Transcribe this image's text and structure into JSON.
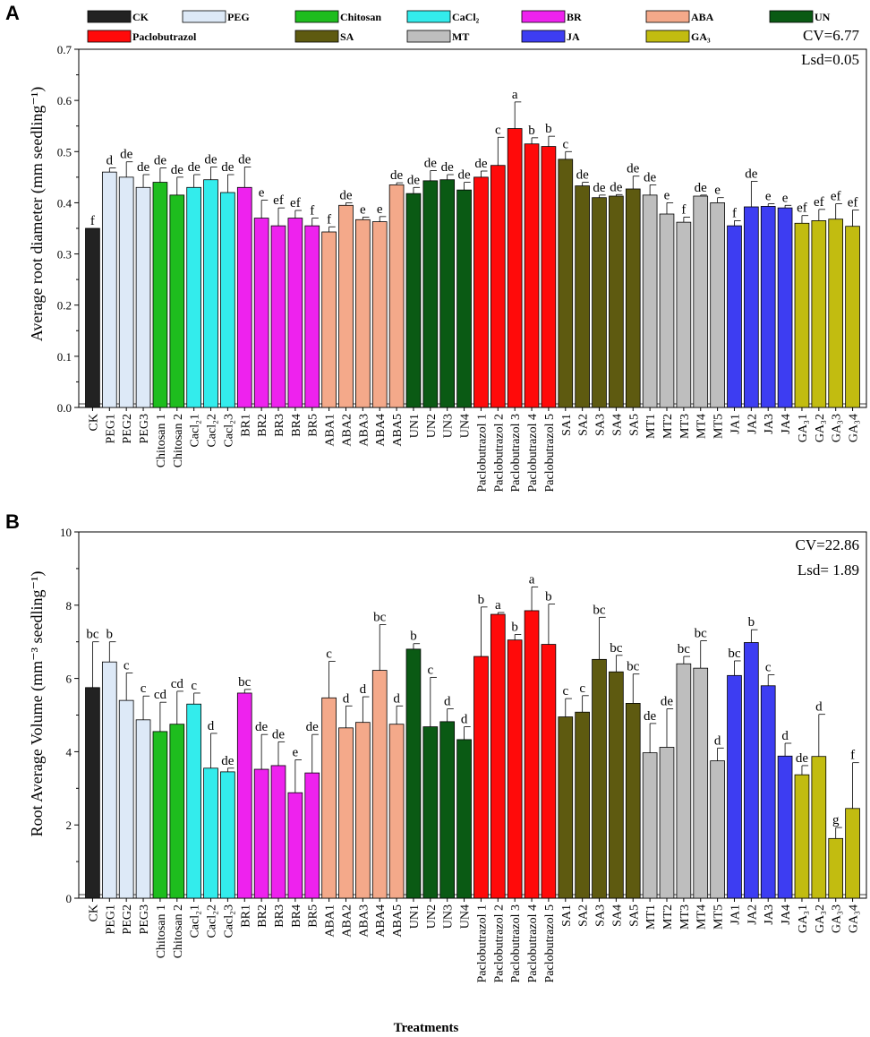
{
  "figure": {
    "xlabel": "Treatments"
  },
  "legend": [
    {
      "label": "CK",
      "color": "#222222"
    },
    {
      "label": "PEG",
      "color": "#dde9f7"
    },
    {
      "label": "Chitosan",
      "color": "#1ebd1e"
    },
    {
      "label": "CaCl₂",
      "color": "#33ecec"
    },
    {
      "label": "BR",
      "color": "#ee22ee"
    },
    {
      "label": "ABA",
      "color": "#f4a98a"
    },
    {
      "label": "UN",
      "color": "#0a5a14"
    },
    {
      "label": "Paclobutrazol",
      "color": "#ff0a0a"
    },
    {
      "label": "SA",
      "color": "#5e5a10"
    },
    {
      "label": "MT",
      "color": "#bebebe"
    },
    {
      "label": "JA",
      "color": "#3d3df2"
    },
    {
      "label": "GA₃",
      "color": "#c2bc10"
    }
  ],
  "chart_data": [
    {
      "panel": "A",
      "type": "bar",
      "title": "",
      "xlabel": "",
      "ylabel": "Average root diameter (mm seedling⁻¹)",
      "ylim": [
        0,
        0.7
      ],
      "yticks": [
        "0.0",
        "0.1",
        "0.2",
        "0.3",
        "0.4",
        "0.5",
        "0.6",
        "0.7"
      ],
      "stats": [
        "CV=6.77",
        "Lsd=0.05"
      ],
      "categories": [
        "CK",
        "PEG1",
        "PEG2",
        "PEG3",
        "Chitosan 1",
        "Chitosan 2",
        "Cacl₂1",
        "Cacl₂2",
        "Cacl₂3",
        "BR1",
        "BR2",
        "BR3",
        "BR4",
        "BR5",
        "ABA1",
        "ABA2",
        "ABA3",
        "ABA4",
        "ABA5",
        "UN1",
        "UN2",
        "UN3",
        "UN4",
        "Paclobutrazol 1",
        "Paclobutrazol 2",
        "Paclobutrazol 3",
        "Paclobutrazol 4",
        "Paclobutrazol 5",
        "SA1",
        "SA2",
        "SA3",
        "SA4",
        "SA5",
        "MT1",
        "MT2",
        "MT3",
        "MT4",
        "MT5",
        "JA1",
        "JA2",
        "JA3",
        "JA4",
        "GA₃1",
        "GA₃2",
        "GA₃3",
        "GA₃4"
      ],
      "groups": [
        0,
        1,
        1,
        1,
        2,
        2,
        3,
        3,
        3,
        4,
        4,
        4,
        4,
        4,
        5,
        5,
        5,
        5,
        5,
        6,
        6,
        6,
        6,
        7,
        7,
        7,
        7,
        7,
        8,
        8,
        8,
        8,
        8,
        9,
        9,
        9,
        9,
        9,
        10,
        10,
        10,
        10,
        11,
        11,
        11,
        11
      ],
      "values": [
        0.35,
        0.46,
        0.45,
        0.43,
        0.44,
        0.415,
        0.43,
        0.445,
        0.42,
        0.43,
        0.37,
        0.355,
        0.37,
        0.355,
        0.343,
        0.395,
        0.367,
        0.363,
        0.435,
        0.418,
        0.443,
        0.445,
        0.425,
        0.45,
        0.473,
        0.545,
        0.515,
        0.51,
        0.485,
        0.433,
        0.41,
        0.413,
        0.427,
        0.415,
        0.378,
        0.362,
        0.413,
        0.4,
        0.355,
        0.392,
        0.393,
        0.39,
        0.36,
        0.365,
        0.368,
        0.354
      ],
      "errors": [
        0,
        0.008,
        0.03,
        0.025,
        0.028,
        0.035,
        0.025,
        0.025,
        0.035,
        0.04,
        0.035,
        0.035,
        0.015,
        0.015,
        0.01,
        0.005,
        0.005,
        0.01,
        0.004,
        0.012,
        0.02,
        0.01,
        0.015,
        0.012,
        0.055,
        0.052,
        0.012,
        0.02,
        0.015,
        0.007,
        0.005,
        0.003,
        0.025,
        0.02,
        0.022,
        0.01,
        0.002,
        0.01,
        0.01,
        0.05,
        0.005,
        0.005,
        0.015,
        0.022,
        0.03,
        0.032
      ],
      "labels": [
        "f",
        "d",
        "de",
        "de",
        "de",
        "de",
        "de",
        "de",
        "de",
        "de",
        "e",
        "ef",
        "ef",
        "f",
        "f",
        "de",
        "e",
        "e",
        "de",
        "de",
        "de",
        "de",
        "de",
        "de",
        "c",
        "a",
        "b",
        "b",
        "c",
        "de",
        "de",
        "de",
        "de",
        "de",
        "e",
        "f",
        "de",
        "e",
        "f",
        "de",
        "e",
        "e",
        "ef",
        "ef",
        "ef",
        "ef"
      ]
    },
    {
      "panel": "B",
      "type": "bar",
      "title": "",
      "xlabel": "Treatments",
      "ylabel": "Root Average Volume (mm⁻³ seedling⁻¹)",
      "ylim": [
        0,
        10
      ],
      "yticks": [
        "0",
        "2",
        "4",
        "6",
        "8",
        "10"
      ],
      "stats": [
        "CV=22.86",
        "Lsd= 1.89"
      ],
      "categories": [
        "CK",
        "PEG1",
        "PEG2",
        "PEG3",
        "Chitosan 1",
        "Chitosan 2",
        "Cacl₂1",
        "Cacl₂2",
        "Cacl₂3",
        "BR1",
        "BR2",
        "BR3",
        "BR4",
        "BR5",
        "ABA1",
        "ABA2",
        "ABA3",
        "ABA4",
        "ABA5",
        "UN1",
        "UN2",
        "UN3",
        "UN4",
        "Paclobutrazol 1",
        "Paclobutrazol 2",
        "Paclobutrazol 3",
        "Paclobutrazol 4",
        "Paclobutrazol 5",
        "SA1",
        "SA2",
        "SA3",
        "SA4",
        "SA5",
        "MT1",
        "MT2",
        "MT3",
        "MT4",
        "MT5",
        "JA1",
        "JA2",
        "JA3",
        "JA4",
        "GA₃1",
        "GA₃2",
        "GA₃3",
        "GA₃4"
      ],
      "groups": [
        0,
        1,
        1,
        1,
        2,
        2,
        3,
        3,
        3,
        4,
        4,
        4,
        4,
        4,
        5,
        5,
        5,
        5,
        5,
        6,
        6,
        6,
        6,
        7,
        7,
        7,
        7,
        7,
        8,
        8,
        8,
        8,
        8,
        9,
        9,
        9,
        9,
        9,
        10,
        10,
        10,
        10,
        11,
        11,
        11,
        11
      ],
      "values": [
        5.75,
        6.45,
        5.4,
        4.87,
        4.55,
        4.75,
        5.3,
        3.55,
        3.45,
        5.6,
        3.52,
        3.62,
        2.88,
        3.42,
        5.47,
        4.65,
        4.8,
        6.22,
        4.75,
        6.8,
        4.68,
        4.82,
        4.33,
        6.6,
        7.75,
        7.05,
        7.85,
        6.93,
        4.95,
        5.08,
        6.52,
        6.18,
        5.32,
        3.97,
        4.12,
        6.4,
        6.28,
        3.75,
        6.08,
        6.98,
        5.8,
        3.88,
        3.37,
        3.87,
        1.63,
        2.45
      ],
      "errors": [
        1.25,
        0.55,
        0.75,
        0.65,
        0.8,
        0.9,
        0.3,
        0.95,
        0.1,
        0.1,
        0.95,
        0.65,
        0.9,
        1.05,
        1.0,
        0.6,
        0.7,
        1.25,
        0.5,
        0.15,
        1.35,
        0.35,
        0.35,
        1.35,
        0.05,
        0.15,
        0.65,
        1.1,
        0.5,
        0.45,
        1.15,
        0.45,
        0.8,
        0.8,
        1.05,
        0.2,
        0.75,
        0.35,
        0.4,
        0.35,
        0.3,
        0.35,
        0.25,
        1.15,
        0.3,
        1.25
      ],
      "labels": [
        "bc",
        "b",
        "c",
        "c",
        "cd",
        "cd",
        "c",
        "d",
        "de",
        "bc",
        "de",
        "de",
        "e",
        "de",
        "c",
        "d",
        "d",
        "bc",
        "d",
        "b",
        "c",
        "d",
        "d",
        "b",
        "a",
        "b",
        "a",
        "b",
        "c",
        "c",
        "bc",
        "bc",
        "bc",
        "de",
        "de",
        "bc",
        "bc",
        "d",
        "bc",
        "b",
        "c",
        "d",
        "de",
        "d",
        "g",
        "f"
      ]
    }
  ]
}
